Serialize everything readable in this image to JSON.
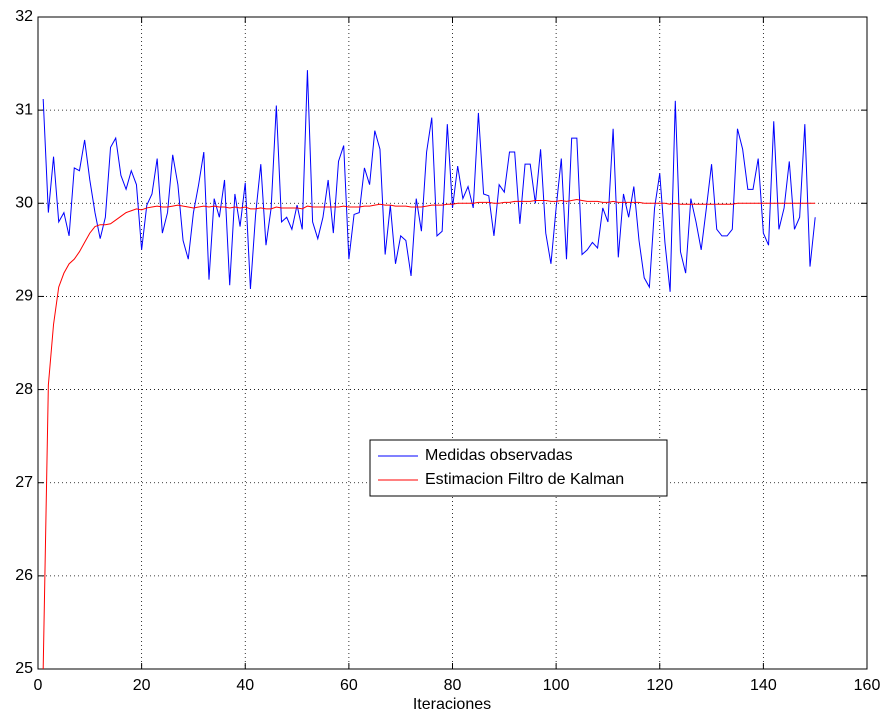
{
  "chart_data": {
    "type": "line",
    "x_label": "Iteraciones",
    "x": [
      1,
      2,
      3,
      4,
      5,
      6,
      7,
      8,
      9,
      10,
      11,
      12,
      13,
      14,
      15,
      16,
      17,
      18,
      19,
      20,
      21,
      22,
      23,
      24,
      25,
      26,
      27,
      28,
      29,
      30,
      31,
      32,
      33,
      34,
      35,
      36,
      37,
      38,
      39,
      40,
      41,
      42,
      43,
      44,
      45,
      46,
      47,
      48,
      49,
      50,
      51,
      52,
      53,
      54,
      55,
      56,
      57,
      58,
      59,
      60,
      61,
      62,
      63,
      64,
      65,
      66,
      67,
      68,
      69,
      70,
      71,
      72,
      73,
      74,
      75,
      76,
      77,
      78,
      79,
      80,
      81,
      82,
      83,
      84,
      85,
      86,
      87,
      88,
      89,
      90,
      91,
      92,
      93,
      94,
      95,
      96,
      97,
      98,
      99,
      100,
      101,
      102,
      103,
      104,
      105,
      106,
      107,
      108,
      109,
      110,
      111,
      112,
      113,
      114,
      115,
      116,
      117,
      118,
      119,
      120,
      121,
      122,
      123,
      124,
      125,
      126,
      127,
      128,
      129,
      130,
      131,
      132,
      133,
      134,
      135,
      136,
      137,
      138,
      139,
      140,
      141,
      142,
      143,
      144,
      145,
      146,
      147,
      148,
      149,
      150
    ],
    "series": [
      {
        "name": "Medidas observadas",
        "color": "#0000ff",
        "values": [
          31.12,
          29.9,
          30.5,
          29.8,
          29.9,
          29.65,
          30.38,
          30.35,
          30.68,
          30.25,
          29.9,
          29.62,
          29.85,
          30.6,
          30.7,
          30.3,
          30.15,
          30.35,
          30.2,
          29.5,
          29.98,
          30.1,
          30.48,
          29.68,
          29.9,
          30.52,
          30.2,
          29.6,
          29.4,
          29.9,
          30.2,
          30.55,
          29.18,
          30.05,
          29.85,
          30.25,
          29.12,
          30.1,
          29.75,
          30.22,
          29.08,
          29.88,
          30.42,
          29.55,
          29.95,
          31.05,
          29.8,
          29.85,
          29.72,
          29.98,
          29.72,
          31.43,
          29.8,
          29.62,
          29.85,
          30.25,
          29.68,
          30.45,
          30.62,
          29.4,
          29.88,
          29.9,
          30.38,
          30.2,
          30.78,
          30.58,
          29.45,
          29.98,
          29.35,
          29.65,
          29.6,
          29.22,
          30.05,
          29.7,
          30.55,
          30.92,
          29.65,
          29.7,
          30.85,
          29.95,
          30.4,
          30.05,
          30.18,
          29.95,
          30.97,
          30.1,
          30.08,
          29.65,
          30.2,
          30.12,
          30.55,
          30.55,
          29.78,
          30.42,
          30.42,
          30.0,
          30.58,
          29.68,
          29.35,
          29.95,
          30.48,
          29.4,
          30.7,
          30.7,
          29.45,
          29.5,
          29.58,
          29.52,
          29.95,
          29.8,
          30.8,
          29.42,
          30.1,
          29.85,
          30.18,
          29.6,
          29.2,
          29.1,
          29.95,
          30.32,
          29.58,
          29.05,
          31.1,
          29.48,
          29.25,
          30.05,
          29.8,
          29.5,
          29.95,
          30.42,
          29.72,
          29.65,
          29.65,
          29.72,
          30.8,
          30.58,
          30.15,
          30.15,
          30.48,
          29.68,
          29.55,
          30.88,
          29.72,
          29.95,
          30.45,
          29.72,
          29.85,
          30.85,
          29.32,
          29.85
        ]
      },
      {
        "name": "Estimacion Filtro de Kalman",
        "color": "#ff0000",
        "values": [
          25.0,
          28.05,
          28.7,
          29.1,
          29.25,
          29.35,
          29.4,
          29.48,
          29.58,
          29.68,
          29.75,
          29.77,
          29.77,
          29.78,
          29.82,
          29.86,
          29.9,
          29.92,
          29.94,
          29.93,
          29.95,
          29.96,
          29.97,
          29.96,
          29.96,
          29.97,
          29.98,
          29.97,
          29.96,
          29.95,
          29.96,
          29.97,
          29.96,
          29.97,
          29.96,
          29.96,
          29.95,
          29.96,
          29.95,
          29.96,
          29.94,
          29.94,
          29.95,
          29.94,
          29.94,
          29.96,
          29.95,
          29.95,
          29.95,
          29.95,
          29.94,
          29.97,
          29.96,
          29.96,
          29.96,
          29.96,
          29.96,
          29.96,
          29.97,
          29.96,
          29.96,
          29.96,
          29.97,
          29.97,
          29.98,
          29.99,
          29.98,
          29.98,
          29.97,
          29.97,
          29.97,
          29.96,
          29.96,
          29.96,
          29.97,
          29.98,
          29.98,
          29.98,
          29.99,
          29.99,
          30.0,
          30.0,
          30.0,
          30.0,
          30.01,
          30.01,
          30.01,
          30.0,
          30.0,
          30.01,
          30.01,
          30.02,
          30.02,
          30.02,
          30.02,
          30.03,
          30.03,
          30.03,
          30.02,
          30.02,
          30.03,
          30.02,
          30.03,
          30.04,
          30.03,
          30.02,
          30.02,
          30.02,
          30.01,
          30.01,
          30.02,
          30.01,
          30.01,
          30.01,
          30.01,
          30.01,
          30.0,
          30.0,
          30.0,
          30.0,
          30.0,
          29.99,
          30.0,
          29.99,
          29.99,
          29.99,
          29.99,
          29.99,
          29.99,
          29.99,
          29.99,
          29.99,
          29.99,
          29.99,
          30.0,
          30.0,
          30.0,
          30.0,
          30.0,
          30.0,
          30.0,
          30.0,
          30.0,
          30.0,
          30.0,
          30.0,
          30.0,
          30.0,
          30.0,
          30.0
        ]
      }
    ],
    "xlim": [
      0,
      160
    ],
    "xticks": [
      0,
      20,
      40,
      60,
      80,
      100,
      120,
      140,
      160
    ],
    "ylim": [
      25,
      32
    ],
    "yticks": [
      25,
      26,
      27,
      28,
      29,
      30,
      31,
      32
    ],
    "grid": true,
    "legend": "center"
  }
}
